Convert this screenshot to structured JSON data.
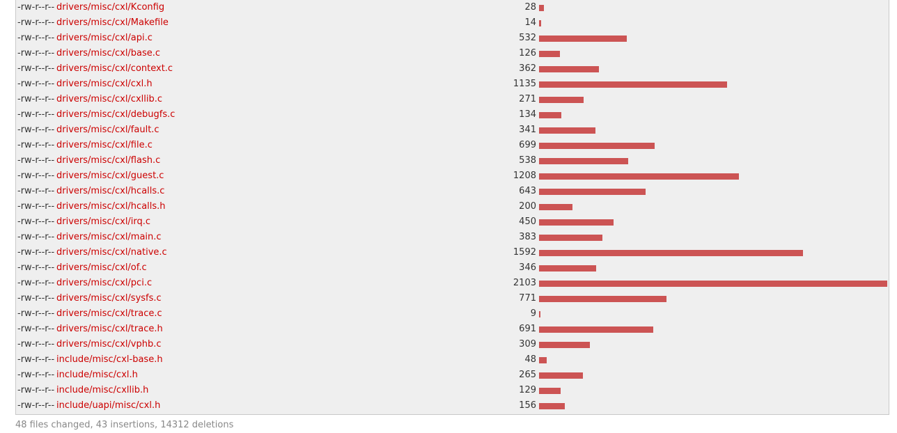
{
  "files": [
    {
      "mode": "-rw-r--r--",
      "path": "drivers/misc/cxl/Kconfig",
      "changes": 28
    },
    {
      "mode": "-rw-r--r--",
      "path": "drivers/misc/cxl/Makefile",
      "changes": 14
    },
    {
      "mode": "-rw-r--r--",
      "path": "drivers/misc/cxl/api.c",
      "changes": 532
    },
    {
      "mode": "-rw-r--r--",
      "path": "drivers/misc/cxl/base.c",
      "changes": 126
    },
    {
      "mode": "-rw-r--r--",
      "path": "drivers/misc/cxl/context.c",
      "changes": 362
    },
    {
      "mode": "-rw-r--r--",
      "path": "drivers/misc/cxl/cxl.h",
      "changes": 1135
    },
    {
      "mode": "-rw-r--r--",
      "path": "drivers/misc/cxl/cxllib.c",
      "changes": 271
    },
    {
      "mode": "-rw-r--r--",
      "path": "drivers/misc/cxl/debugfs.c",
      "changes": 134
    },
    {
      "mode": "-rw-r--r--",
      "path": "drivers/misc/cxl/fault.c",
      "changes": 341
    },
    {
      "mode": "-rw-r--r--",
      "path": "drivers/misc/cxl/file.c",
      "changes": 699
    },
    {
      "mode": "-rw-r--r--",
      "path": "drivers/misc/cxl/flash.c",
      "changes": 538
    },
    {
      "mode": "-rw-r--r--",
      "path": "drivers/misc/cxl/guest.c",
      "changes": 1208
    },
    {
      "mode": "-rw-r--r--",
      "path": "drivers/misc/cxl/hcalls.c",
      "changes": 643
    },
    {
      "mode": "-rw-r--r--",
      "path": "drivers/misc/cxl/hcalls.h",
      "changes": 200
    },
    {
      "mode": "-rw-r--r--",
      "path": "drivers/misc/cxl/irq.c",
      "changes": 450
    },
    {
      "mode": "-rw-r--r--",
      "path": "drivers/misc/cxl/main.c",
      "changes": 383
    },
    {
      "mode": "-rw-r--r--",
      "path": "drivers/misc/cxl/native.c",
      "changes": 1592
    },
    {
      "mode": "-rw-r--r--",
      "path": "drivers/misc/cxl/of.c",
      "changes": 346
    },
    {
      "mode": "-rw-r--r--",
      "path": "drivers/misc/cxl/pci.c",
      "changes": 2103
    },
    {
      "mode": "-rw-r--r--",
      "path": "drivers/misc/cxl/sysfs.c",
      "changes": 771
    },
    {
      "mode": "-rw-r--r--",
      "path": "drivers/misc/cxl/trace.c",
      "changes": 9
    },
    {
      "mode": "-rw-r--r--",
      "path": "drivers/misc/cxl/trace.h",
      "changes": 691
    },
    {
      "mode": "-rw-r--r--",
      "path": "drivers/misc/cxl/vphb.c",
      "changes": 309
    },
    {
      "mode": "-rw-r--r--",
      "path": "include/misc/cxl-base.h",
      "changes": 48
    },
    {
      "mode": "-rw-r--r--",
      "path": "include/misc/cxl.h",
      "changes": 265
    },
    {
      "mode": "-rw-r--r--",
      "path": "include/misc/cxllib.h",
      "changes": 129
    },
    {
      "mode": "-rw-r--r--",
      "path": "include/uapi/misc/cxl.h",
      "changes": 156
    }
  ],
  "summary": "48 files changed, 43 insertions, 14312 deletions",
  "colors": {
    "path": "#cc0000",
    "bar": "#cc5454",
    "panel": "#efefef"
  }
}
